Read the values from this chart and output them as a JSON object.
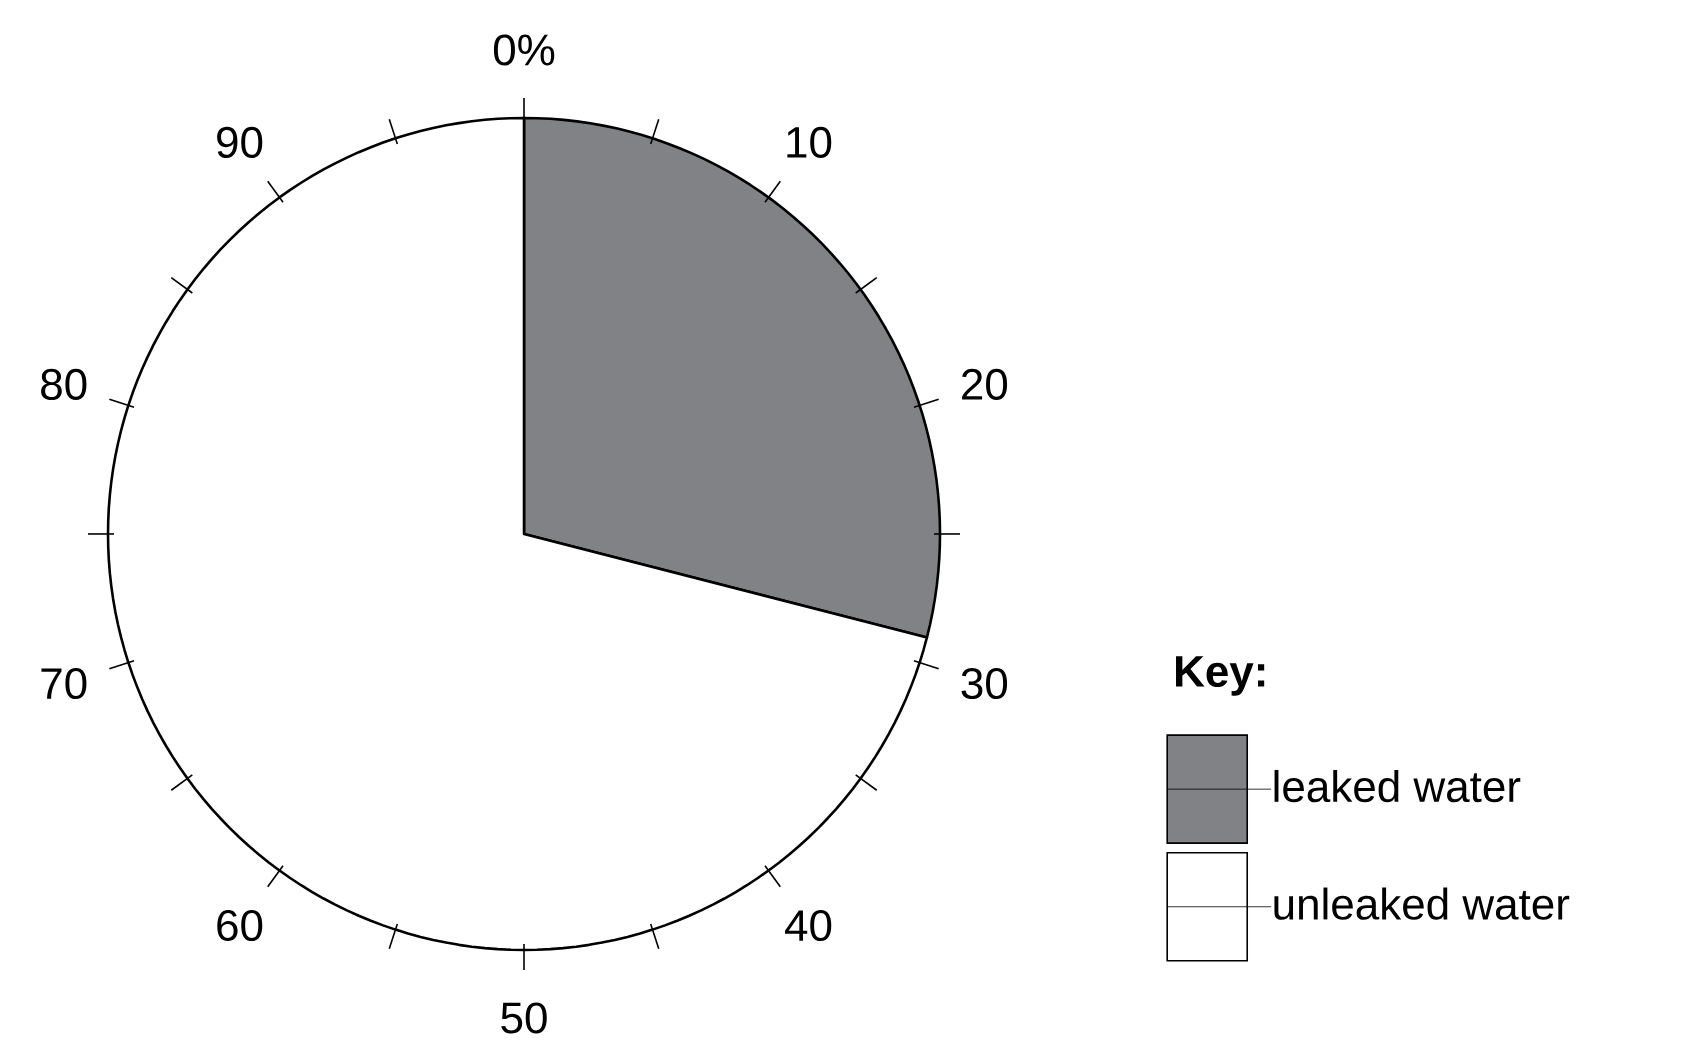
{
  "chart_data": {
    "type": "pie",
    "legend_title": "Key:",
    "legend": "right",
    "categories": [
      "leaked water",
      "unleaked water"
    ],
    "values": [
      29,
      71
    ],
    "colors": [
      "#808285",
      "#ffffff"
    ],
    "annotations": [
      "0%",
      "10",
      "20",
      "30",
      "40",
      "50",
      "60",
      "70",
      "80",
      "90"
    ]
  }
}
